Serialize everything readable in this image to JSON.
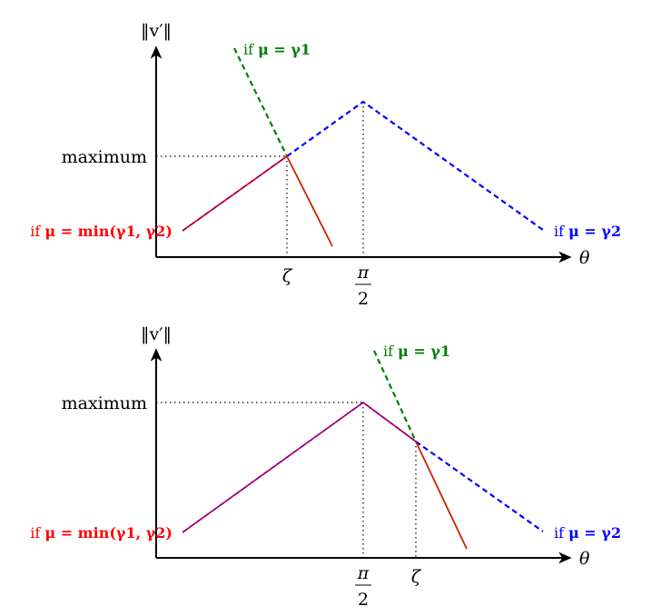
{
  "colors": {
    "axis": "#000000",
    "red": "#ff0000",
    "green": "#008000",
    "blue": "#0000ff",
    "dark_red": "#cc2200",
    "pink": "#cc0055"
  },
  "panels": [
    {
      "y_axis_label": "‖v′‖",
      "x_axis_label": "θ",
      "maximum_label": "maximum",
      "zeta_label": "ζ",
      "pi_numerator": "π",
      "pi_denominator": "2",
      "red_label_prefix": "if ",
      "red_label_math": "μ = min(γ1, γ2)",
      "green_label_prefix": "if ",
      "green_label_math": "μ = γ1",
      "blue_label_prefix": "if ",
      "blue_label_math": "μ = γ2"
    },
    {
      "y_axis_label": "‖v′‖",
      "x_axis_label": "θ",
      "maximum_label": "maximum",
      "zeta_label": "ζ",
      "pi_numerator": "π",
      "pi_denominator": "2",
      "red_label_prefix": "if ",
      "red_label_math": "μ = min(γ1, γ2)",
      "green_label_prefix": "if ",
      "green_label_math": "μ = γ1",
      "blue_label_prefix": "if ",
      "blue_label_math": "μ = γ2"
    }
  ]
}
